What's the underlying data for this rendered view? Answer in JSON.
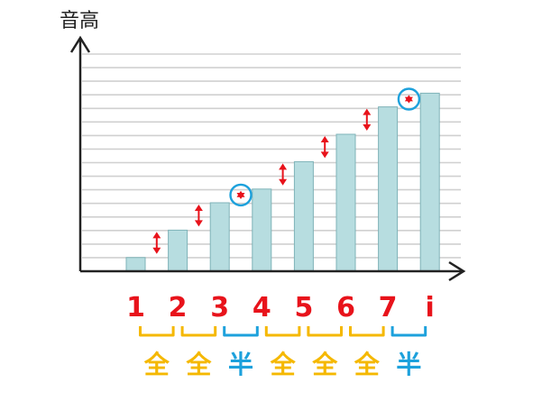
{
  "diagram": {
    "y_axis_label": "音高",
    "notes": [
      {
        "label": "1",
        "level": 1
      },
      {
        "label": "2",
        "level": 3
      },
      {
        "label": "3",
        "level": 5
      },
      {
        "label": "4",
        "level": 6
      },
      {
        "label": "5",
        "level": 8
      },
      {
        "label": "6",
        "level": 10
      },
      {
        "label": "7",
        "level": 12
      },
      {
        "label": "i",
        "level": 13
      }
    ],
    "steps": [
      {
        "label": "全",
        "kind": "whole"
      },
      {
        "label": "全",
        "kind": "whole"
      },
      {
        "label": "半",
        "kind": "half"
      },
      {
        "label": "全",
        "kind": "whole"
      },
      {
        "label": "全",
        "kind": "whole"
      },
      {
        "label": "全",
        "kind": "whole"
      },
      {
        "label": "半",
        "kind": "half"
      }
    ],
    "grid_line_count": 16,
    "colors": {
      "bar_fill": "#b7dde0",
      "bar_stroke": "#7fb3b8",
      "grid": "#d0d0d0",
      "axis": "#222222",
      "note_label": "#e8131b",
      "arrow": "#e8131b",
      "half_highlight": "#1da1dc",
      "whole_step": "#f5b800",
      "half_step": "#1da1dc"
    }
  }
}
